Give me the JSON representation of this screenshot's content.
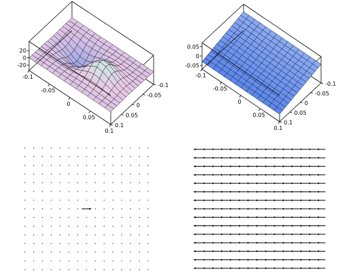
{
  "chart_data": [
    {
      "type": "surface",
      "title": "",
      "xlabel": "",
      "ylabel": "",
      "zlabel": "",
      "x_ticks": [
        "-0.1",
        "-0.05",
        "0",
        "0.05",
        "0.1"
      ],
      "y_ticks": [
        "-0.1",
        "-0.05",
        "0",
        "0.05",
        "0.1"
      ],
      "z_ticks": [
        "20",
        "0",
        "-20"
      ],
      "xlim": [
        -0.1,
        0.1
      ],
      "ylim": [
        -0.1,
        0.1
      ],
      "zlim": [
        -35,
        45
      ],
      "shape": "dipole: positive lobe and negative lobe separated along x near the origin",
      "peak": 40,
      "trough": -35,
      "colormap": [
        "#9aa6e6",
        "#e8c8e6",
        "#c8f0e6"
      ]
    },
    {
      "type": "surface",
      "title": "",
      "xlabel": "",
      "ylabel": "",
      "zlabel": "",
      "x_ticks": [
        "-0.1",
        "-0.05",
        "0",
        "0.05",
        "0.1"
      ],
      "y_ticks": [
        "-0.1",
        "-0.05",
        "0",
        "0.05",
        "0.1"
      ],
      "z_ticks": [
        "0.05",
        "0",
        "-0.05"
      ],
      "xlim": [
        -0.1,
        0.1
      ],
      "ylim": [
        -0.1,
        0.1
      ],
      "zlim": [
        -0.07,
        0.07
      ],
      "shape": "tilted plane z = 0.3*y",
      "colormap": [
        "#5a86ee",
        "#8aaaf6"
      ]
    },
    {
      "type": "vector_field",
      "title": "",
      "grid": [
        15,
        15
      ],
      "description": "zero field everywhere except one horizontal arrow at the center",
      "arrows": [
        {
          "x": 0,
          "y": 0,
          "dx": 1,
          "dy": 0
        }
      ]
    },
    {
      "type": "vector_field",
      "title": "",
      "grid": [
        15,
        15
      ],
      "description": "uniform field, every arrow points in the -x direction",
      "arrows": [
        {
          "x": "all",
          "y": "all",
          "dx": -1,
          "dy": 0
        }
      ]
    }
  ]
}
